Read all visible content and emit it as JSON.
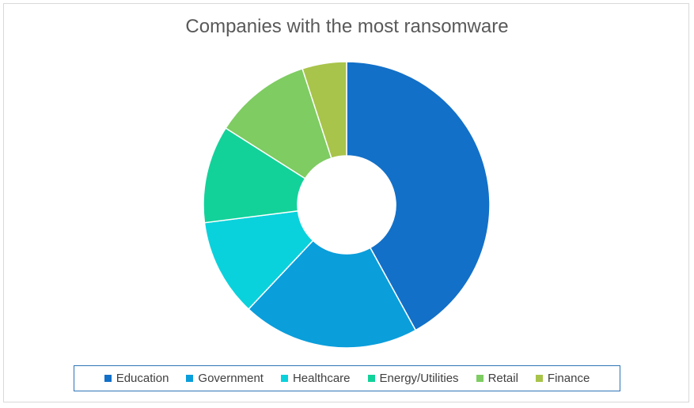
{
  "chart_data": {
    "type": "pie",
    "title": "Companies with the most ransomware",
    "categories": [
      "Education",
      "Government",
      "Healthcare",
      "Energy/Utilities",
      "Retail",
      "Finance"
    ],
    "values": [
      42,
      20,
      11,
      11,
      11,
      5
    ],
    "colors": [
      "#1270c8",
      "#0a9edb",
      "#0ad2dc",
      "#12d29a",
      "#7ecc62",
      "#a8c44a"
    ],
    "donut": true,
    "legend_position": "bottom"
  }
}
